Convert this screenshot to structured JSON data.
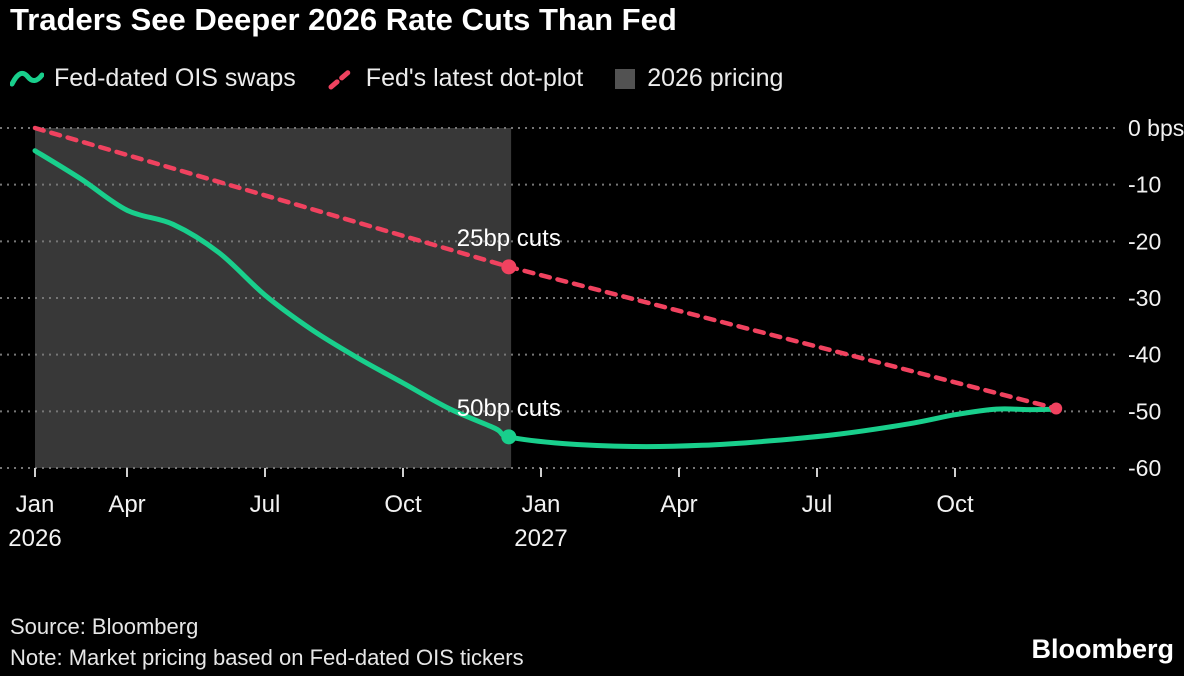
{
  "title": "Traders See Deeper 2026 Rate Cuts Than Fed",
  "legend": [
    {
      "label": "Fed-dated OIS swaps",
      "type": "line",
      "color": "#19cf8c"
    },
    {
      "label": "Fed's latest dot-plot",
      "type": "dashed",
      "color": "#f0425f"
    },
    {
      "label": "2026 pricing",
      "type": "square",
      "color": "#525252"
    }
  ],
  "source": "Source: Bloomberg",
  "note": "Note: Market pricing based on Fed-dated OIS tickers",
  "brand": "Bloomberg",
  "colors": {
    "background": "#000000",
    "green": "#19cf8c",
    "red": "#f0425f",
    "region": "#383838",
    "grid": "#767676",
    "axis_text": "#f2f2f2",
    "annotation_text": "#ffffff",
    "tick": "#cfcfcf"
  },
  "chart_data": {
    "type": "line",
    "title": "Traders See Deeper 2026 Rate Cuts Than Fed",
    "xlabel": "",
    "ylabel": "bps",
    "ylim": [
      -60,
      0
    ],
    "yticks": [
      0,
      -10,
      -20,
      -30,
      -40,
      -50,
      -60
    ],
    "ytick_labels": [
      "0 bps",
      "-10",
      "-20",
      "-30",
      "-40",
      "-50",
      "-60"
    ],
    "grid": "dotted-horizontal",
    "legend_position": "top",
    "x_unit": "months_since_jan_2026",
    "x_ticks": [
      {
        "label": "Jan",
        "sublabel": "2026",
        "month": 1
      },
      {
        "label": "Apr",
        "month": 3
      },
      {
        "label": "Jul",
        "month": 6
      },
      {
        "label": "Oct",
        "month": 9
      },
      {
        "label": "Jan",
        "sublabel": "2027",
        "month": 12
      },
      {
        "label": "Apr",
        "month": 15
      },
      {
        "label": "Jul",
        "month": 18
      },
      {
        "label": "Oct",
        "month": 21
      }
    ],
    "shaded_region": {
      "label": "2026 pricing",
      "from_month": 1,
      "to_month": 11.35,
      "color": "#383838"
    },
    "series": [
      {
        "name": "Fed-dated OIS swaps",
        "color": "#19cf8c",
        "style": "solid",
        "smooth": true,
        "width": 5,
        "x": [
          1,
          2,
          3,
          4,
          5,
          6,
          7,
          8,
          9,
          10,
          11,
          11.3,
          12.5,
          14,
          15.5,
          17,
          18.5,
          20,
          21,
          21.9,
          22.6,
          23.2
        ],
        "values": [
          -4,
          -9,
          -14.5,
          -17,
          -22,
          -29.5,
          -35.5,
          -40.5,
          -45,
          -49.5,
          -53,
          -54.5,
          -55.7,
          -56.2,
          -56,
          -55.2,
          -54,
          -52.2,
          -50.6,
          -49.6,
          -49.7,
          -49.6
        ]
      },
      {
        "name": "Fed's latest dot-plot",
        "color": "#f0425f",
        "style": "dashed",
        "smooth": false,
        "width": 4.5,
        "dash": "9 8",
        "x": [
          1,
          11.3,
          23.2
        ],
        "values": [
          0,
          -24.5,
          -49.5
        ]
      }
    ],
    "markers": [
      {
        "series": "Fed's latest dot-plot",
        "month": 11.3,
        "bps": -24.5,
        "color": "#f0425f",
        "r": 7.5,
        "label": "25bp cuts"
      },
      {
        "series": "Fed-dated OIS swaps",
        "month": 11.3,
        "bps": -54.5,
        "color": "#19cf8c",
        "r": 7.5,
        "label": "50bp cuts"
      },
      {
        "series": "Fed's latest dot-plot",
        "month": 23.2,
        "bps": -49.5,
        "color": "#f0425f",
        "r": 6,
        "label": ""
      }
    ]
  }
}
